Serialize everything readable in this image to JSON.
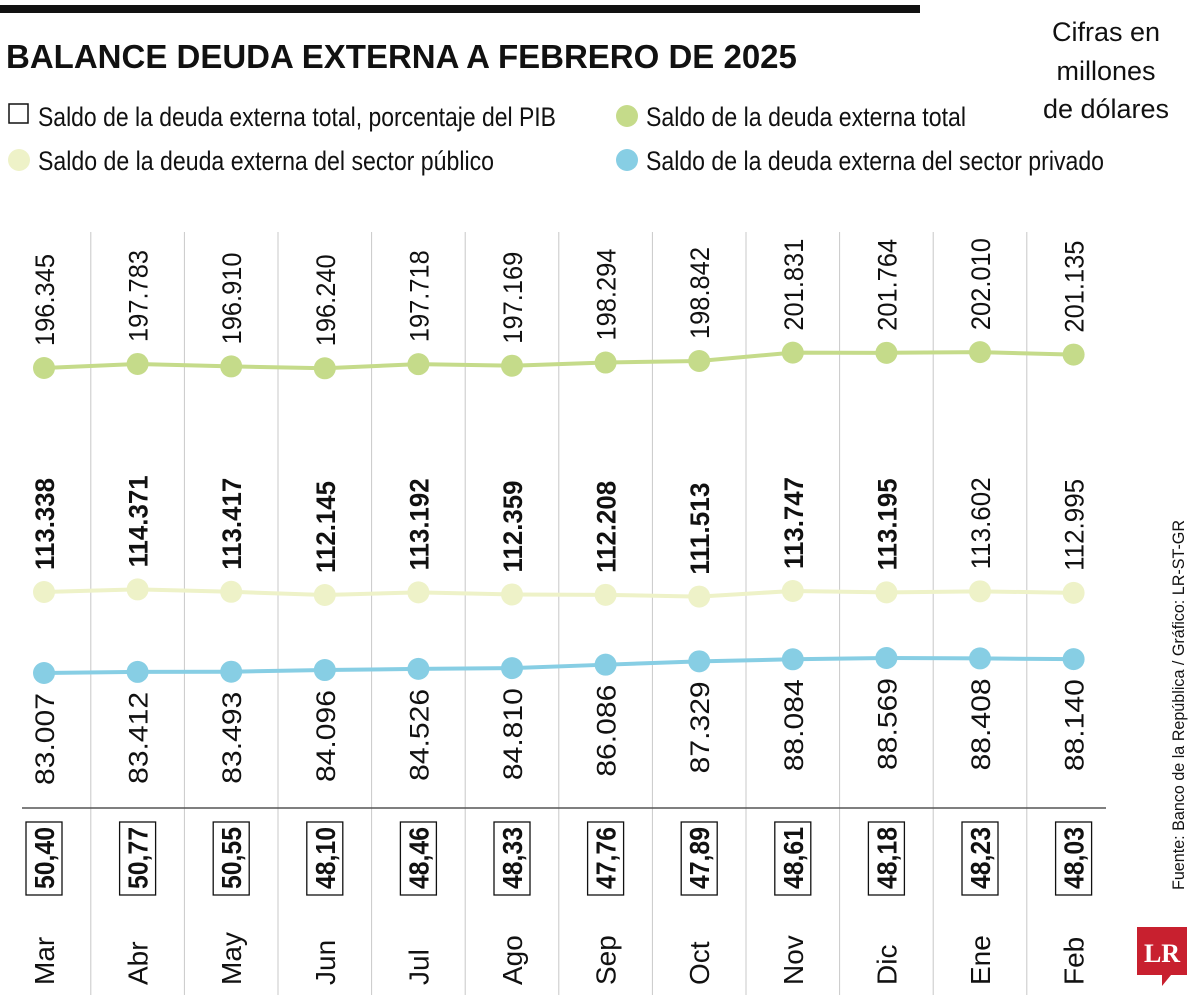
{
  "title": "BALANCE DEUDA EXTERNA A FEBRERO DE 2025",
  "units": [
    "Cifras en",
    "millones",
    "de dólares"
  ],
  "source": "Fuente: Banco de la República / Gráfico: LR-ST-GR",
  "logo": "LR",
  "colors": {
    "total": "#c5db8a",
    "public": "#eef2c8",
    "private": "#87cee4",
    "brand": "#c8202f"
  },
  "chart_data": {
    "type": "line",
    "categories": [
      "Mar",
      "Abr",
      "May",
      "Jun",
      "Jul",
      "Ago",
      "Sep",
      "Oct",
      "Nov",
      "Dic",
      "Ene",
      "Feb"
    ],
    "legend": [
      {
        "label": "Saldo de la deuda externa total, porcentaje del PIB",
        "marker": "square-outline"
      },
      {
        "label": "Saldo de la deuda externa total",
        "marker": "circle"
      },
      {
        "label": "Saldo de la deuda externa del sector público",
        "marker": "circle"
      },
      {
        "label": "Saldo de la deuda externa del sector privado",
        "marker": "circle"
      }
    ],
    "series": [
      {
        "name": "Saldo de la deuda externa total",
        "values": [
          196.345,
          197.783,
          196.91,
          196.24,
          197.718,
          197.169,
          198.294,
          198.842,
          201.831,
          201.764,
          202.01,
          201.135
        ],
        "labels": [
          "196.345",
          "197.783",
          "196.910",
          "196.240",
          "197.718",
          "197.169",
          "198.294",
          "198.842",
          "201.831",
          "201.764",
          "202.010",
          "201.135"
        ]
      },
      {
        "name": "Saldo de la deuda externa del sector público",
        "values": [
          113.338,
          114.371,
          113.417,
          112.145,
          113.192,
          112.359,
          112.208,
          111.513,
          113.747,
          113.195,
          113.602,
          112.995
        ],
        "labels": [
          "113.338",
          "114.371",
          "113.417",
          "112.145",
          "113.192",
          "112.359",
          "112.208",
          "111.513",
          "113.747",
          "113.195",
          "113.602",
          "112.995"
        ]
      },
      {
        "name": "Saldo de la deuda externa del sector privado",
        "values": [
          83.007,
          83.412,
          83.493,
          84.096,
          84.526,
          84.81,
          86.086,
          87.329,
          88.084,
          88.569,
          88.408,
          88.14
        ],
        "labels": [
          "83.007",
          "83.412",
          "83.493",
          "84.096",
          "84.526",
          "84.810",
          "86.086",
          "87.329",
          "88.084",
          "88.569",
          "88.408",
          "88.140"
        ]
      }
    ],
    "pib_percent": [
      "50,40",
      "50,77",
      "50,55",
      "48,10",
      "48,46",
      "48,33",
      "47,76",
      "47,89",
      "48,61",
      "48,18",
      "48,23",
      "48,03"
    ],
    "legend_placement": "top",
    "grid": "vertical"
  }
}
